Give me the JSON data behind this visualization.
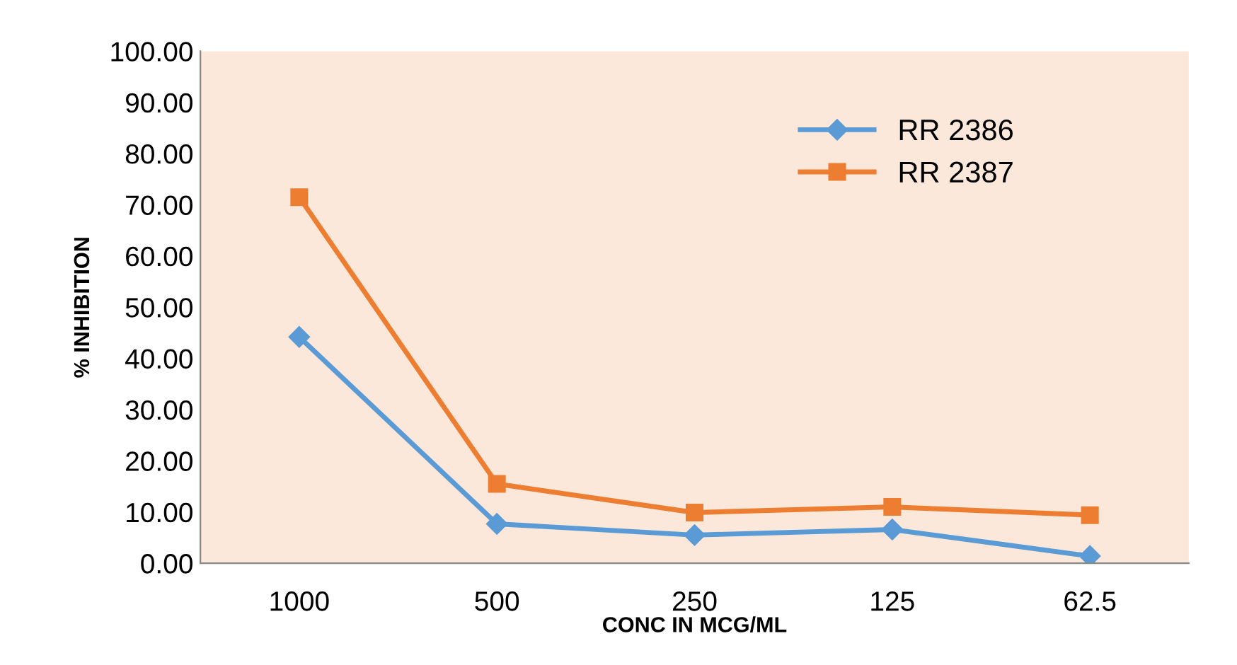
{
  "chart_data": {
    "type": "line",
    "xlabel": "CONC IN MCG/ML",
    "ylabel": "% INHIBITION",
    "categories": [
      "1000",
      "500",
      "250",
      "125",
      "62.5"
    ],
    "series": [
      {
        "name": "RR 2386",
        "color": "#5b9bd5",
        "marker": "diamond",
        "values": [
          44.2,
          7.7,
          5.5,
          6.6,
          1.4
        ]
      },
      {
        "name": "RR 2387",
        "color": "#ed7d31",
        "marker": "square",
        "values": [
          71.5,
          15.5,
          9.9,
          11.0,
          9.4
        ]
      }
    ],
    "ylim": [
      0,
      100
    ],
    "yticks": [
      {
        "value": 0,
        "label": "0.00"
      },
      {
        "value": 10,
        "label": "10.00"
      },
      {
        "value": 20,
        "label": "20.00"
      },
      {
        "value": 30,
        "label": "30.00"
      },
      {
        "value": 40,
        "label": "40.00"
      },
      {
        "value": 50,
        "label": "50.00"
      },
      {
        "value": 60,
        "label": "60.00"
      },
      {
        "value": 70,
        "label": "70.00"
      },
      {
        "value": 80,
        "label": "80.00"
      },
      {
        "value": 90,
        "label": "90.00"
      },
      {
        "value": 100,
        "label": "100.00"
      }
    ],
    "grid": false,
    "legend": "top right",
    "line_style": "solid"
  }
}
